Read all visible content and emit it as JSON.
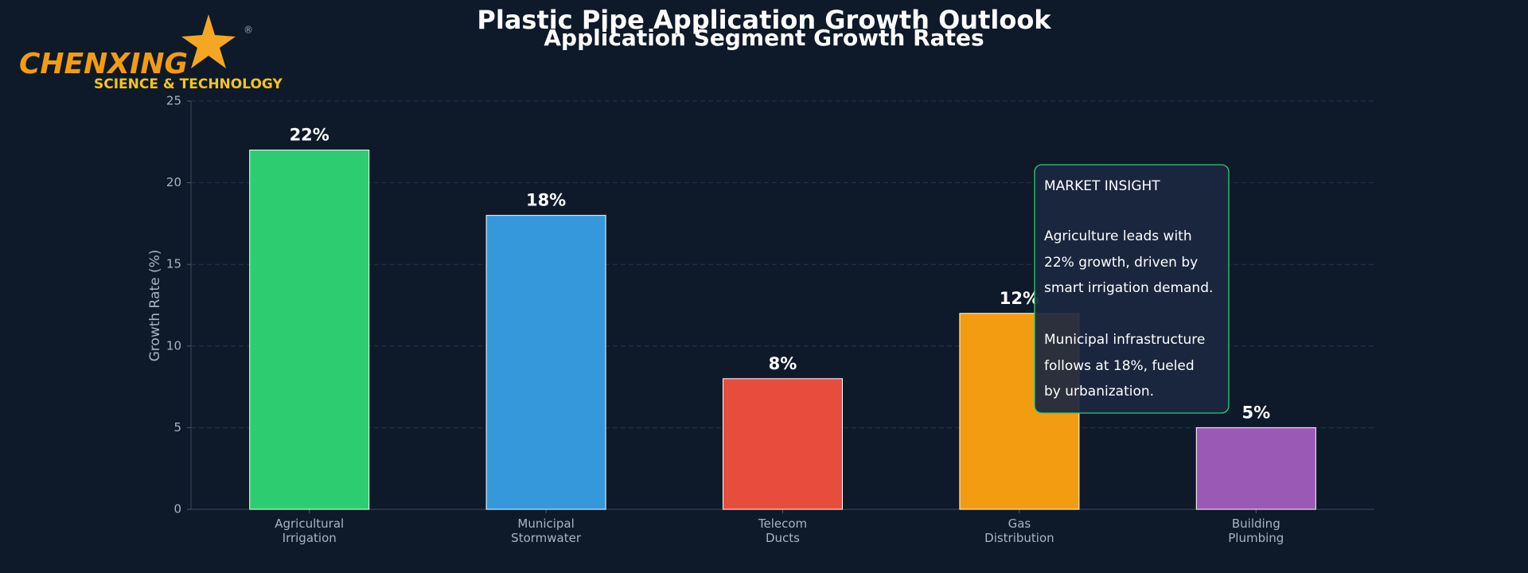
{
  "logo": {
    "name": "CHENXING",
    "tagline": "SCIENCE & TECHNOLOGY",
    "mark": "®"
  },
  "chart_data": {
    "type": "bar",
    "title": "Plastic Pipe Application Growth Outlook",
    "subtitle": "Application Segment Growth Rates",
    "y_label": "Growth Rate (%)",
    "categories": [
      "Agricultural\nIrrigation",
      "Municipal\nStormwater",
      "Telecom\nDucts",
      "Gas\nDistribution",
      "Building\nPlumbing"
    ],
    "values": [
      22,
      18,
      8,
      12,
      5
    ],
    "value_labels": [
      "22%",
      "18%",
      "8%",
      "12%",
      "5%"
    ],
    "colors": [
      "#2ecc71",
      "#3498db",
      "#e74c3c",
      "#f39c12",
      "#9b59b6"
    ],
    "ylim": [
      0,
      25
    ],
    "yticks": [
      0,
      5,
      10,
      15,
      20,
      25
    ],
    "grid": true,
    "annotation": {
      "title": "MARKET INSIGHT",
      "lines": [
        "Agriculture leads with",
        "22% growth, driven by",
        "smart irrigation demand.",
        "Municipal infrastructure",
        "follows at 18%, fueled",
        "by urbanization."
      ]
    }
  }
}
